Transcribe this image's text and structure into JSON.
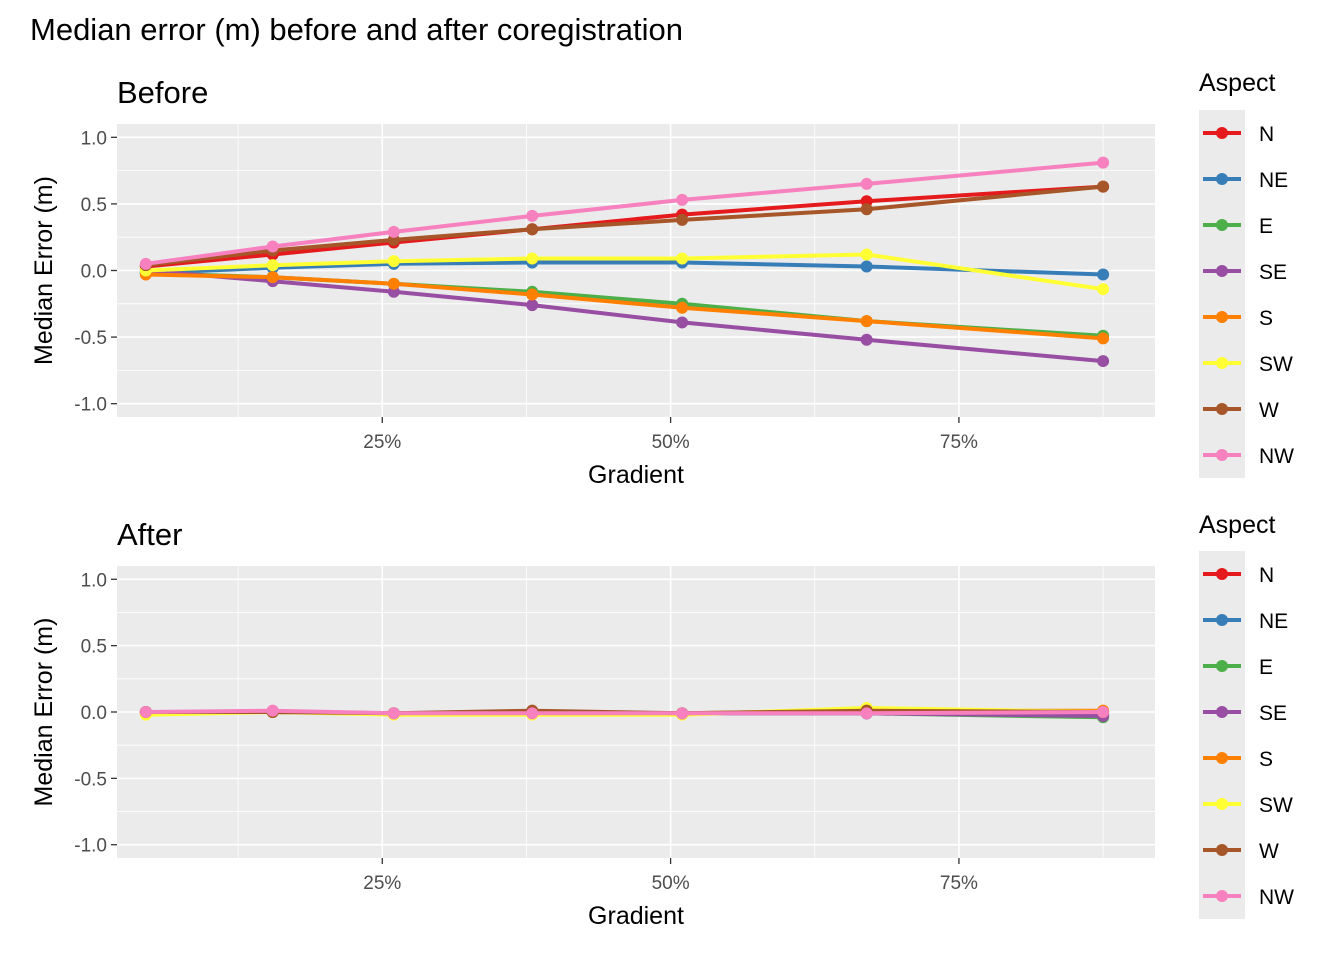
{
  "title": "Median error (m) before and after coregistration",
  "colors": {
    "panel_bg": "#EBEBEB",
    "grid_major": "#FFFFFF",
    "axis_text": "#4D4D4D",
    "N": "#E41A1C",
    "NE": "#377EB8",
    "E": "#4DAF4A",
    "SE": "#984EA3",
    "S": "#FF7F00",
    "SW": "#FFFF33",
    "W": "#A65628",
    "NW": "#F781BF"
  },
  "chart_data": [
    {
      "type": "line",
      "title": "Before",
      "xlabel": "Gradient",
      "ylabel": "Median Error (m)",
      "xlim": [
        0.02,
        0.92
      ],
      "ylim": [
        -1.1,
        1.1
      ],
      "x_ticks": [
        0.25,
        0.5,
        0.75
      ],
      "x_tick_labels": [
        "25%",
        "50%",
        "75%"
      ],
      "y_ticks": [
        1.0,
        0.5,
        0.0,
        -0.5,
        -1.0
      ],
      "y_tick_labels": [
        "1.0",
        "0.5",
        "0.0",
        "-0.5",
        "-1.0"
      ],
      "grid": true,
      "legend": {
        "title": "Aspect",
        "position": "right"
      },
      "x": [
        0.045,
        0.155,
        0.26,
        0.38,
        0.51,
        0.67,
        0.875
      ],
      "series": [
        {
          "name": "N",
          "values": [
            0.03,
            0.12,
            0.21,
            0.31,
            0.42,
            0.52,
            0.63
          ]
        },
        {
          "name": "NE",
          "values": [
            -0.02,
            0.02,
            0.05,
            0.06,
            0.06,
            0.03,
            -0.03
          ]
        },
        {
          "name": "E",
          "values": [
            -0.02,
            -0.05,
            -0.1,
            -0.16,
            -0.25,
            -0.38,
            -0.49
          ]
        },
        {
          "name": "SE",
          "values": [
            0.0,
            -0.08,
            -0.16,
            -0.26,
            -0.39,
            -0.52,
            -0.68
          ]
        },
        {
          "name": "S",
          "values": [
            -0.03,
            -0.05,
            -0.1,
            -0.18,
            -0.28,
            -0.38,
            -0.51
          ]
        },
        {
          "name": "SW",
          "values": [
            0.0,
            0.04,
            0.07,
            0.09,
            0.09,
            0.12,
            -0.14
          ]
        },
        {
          "name": "W",
          "values": [
            0.04,
            0.15,
            0.23,
            0.31,
            0.38,
            0.46,
            0.63
          ]
        },
        {
          "name": "NW",
          "values": [
            0.05,
            0.18,
            0.29,
            0.41,
            0.53,
            0.65,
            0.81
          ]
        }
      ]
    },
    {
      "type": "line",
      "title": "After",
      "xlabel": "Gradient",
      "ylabel": "Median Error (m)",
      "xlim": [
        0.02,
        0.92
      ],
      "ylim": [
        -1.1,
        1.1
      ],
      "x_ticks": [
        0.25,
        0.5,
        0.75
      ],
      "x_tick_labels": [
        "25%",
        "50%",
        "75%"
      ],
      "y_ticks": [
        1.0,
        0.5,
        0.0,
        -0.5,
        -1.0
      ],
      "y_tick_labels": [
        "1.0",
        "0.5",
        "0.0",
        "-0.5",
        "-1.0"
      ],
      "grid": true,
      "legend": {
        "title": "Aspect",
        "position": "right"
      },
      "x": [
        0.045,
        0.155,
        0.26,
        0.38,
        0.51,
        0.67,
        0.875
      ],
      "series": [
        {
          "name": "N",
          "values": [
            0.0,
            0.0,
            -0.01,
            0.0,
            -0.01,
            0.0,
            0.0
          ]
        },
        {
          "name": "NE",
          "values": [
            0.0,
            0.0,
            -0.01,
            -0.01,
            -0.01,
            -0.01,
            -0.02
          ]
        },
        {
          "name": "E",
          "values": [
            0.0,
            0.0,
            -0.01,
            -0.01,
            -0.01,
            -0.01,
            -0.04
          ]
        },
        {
          "name": "SE",
          "values": [
            0.0,
            0.0,
            -0.01,
            -0.01,
            -0.01,
            -0.01,
            -0.03
          ]
        },
        {
          "name": "S",
          "values": [
            0.0,
            0.0,
            -0.01,
            -0.01,
            -0.01,
            0.01,
            0.01
          ]
        },
        {
          "name": "SW",
          "values": [
            -0.02,
            0.0,
            -0.02,
            -0.02,
            -0.02,
            0.03,
            0.0
          ]
        },
        {
          "name": "W",
          "values": [
            0.0,
            0.0,
            -0.01,
            0.01,
            -0.01,
            0.01,
            0.0
          ]
        },
        {
          "name": "NW",
          "values": [
            0.0,
            0.01,
            -0.01,
            -0.01,
            -0.01,
            -0.01,
            0.0
          ]
        }
      ]
    }
  ]
}
